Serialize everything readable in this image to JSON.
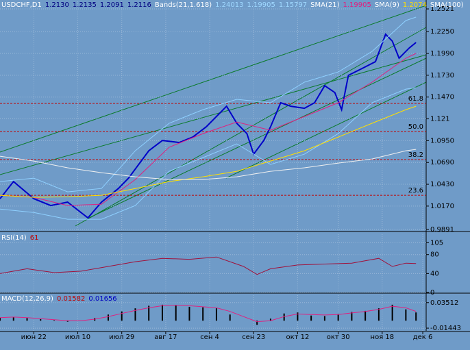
{
  "chart_data": [
    {
      "type": "line",
      "header": [
        {
          "text": "USDCHF,D1",
          "color": "#ffffff"
        },
        {
          "text": "1.2130",
          "color": "#000080"
        },
        {
          "text": "1.2135",
          "color": "#000080"
        },
        {
          "text": "1.2091",
          "color": "#000080"
        },
        {
          "text": "1.2116",
          "color": "#000080"
        },
        {
          "text": "Bands(21,1.618)",
          "color": "#ffffff"
        },
        {
          "text": "1.24013",
          "color": "#9fd8ff"
        },
        {
          "text": "1.19905",
          "color": "#9fd8ff"
        },
        {
          "text": "1.15797",
          "color": "#9fd8ff"
        },
        {
          "text": "SMA(21)",
          "color": "#ffffff"
        },
        {
          "text": "1.19905",
          "color": "#e0207f"
        },
        {
          "text": "SMA(9)",
          "color": "#ffffff"
        },
        {
          "text": "1.2074",
          "color": "#ffe000"
        },
        {
          "text": "SMA(100)",
          "color": "#ffffff"
        }
      ],
      "xlim": [
        0,
        126
      ],
      "xticks": [
        {
          "value": 10,
          "label": "июн 22"
        },
        {
          "value": 23,
          "label": "июл 10"
        },
        {
          "value": 36,
          "label": "июл 29"
        },
        {
          "value": 49,
          "label": "авг 17"
        },
        {
          "value": 62,
          "label": "сен 4"
        },
        {
          "value": 75,
          "label": "сен 23"
        },
        {
          "value": 88,
          "label": "окт 12"
        },
        {
          "value": 100,
          "label": "окт 30"
        },
        {
          "value": 113,
          "label": "ноя 18"
        },
        {
          "value": 125,
          "label": "дек 6"
        }
      ],
      "ylim": [
        0.9875,
        1.2611
      ],
      "yticks": [
        1.2521,
        {
          "value": 1.225,
          "label": "1.2250"
        },
        {
          "value": 1.199,
          "label": "1.1990"
        },
        {
          "value": 1.173,
          "label": "1.1730"
        },
        {
          "value": 1.147,
          "label": "1.1470"
        },
        1.121,
        {
          "value": 1.095,
          "label": "1.0950"
        },
        {
          "value": 1.069,
          "label": "1.0690"
        },
        {
          "value": 1.043,
          "label": "1.0430"
        },
        {
          "value": 1.017,
          "label": "1.0170"
        },
        0.9891
      ],
      "grid": true,
      "levels": [
        {
          "label": "61.8",
          "value": 1.1394
        },
        {
          "label": "50.0",
          "value": 1.1059
        },
        {
          "label": "38.2",
          "value": 1.0724
        },
        {
          "label": "23.6",
          "value": 1.0299
        }
      ],
      "series": [
        {
          "color": "#0000c8",
          "width": 2,
          "x": [
            0,
            4,
            10,
            15,
            20,
            26,
            30,
            35,
            38,
            44,
            48,
            53,
            57,
            61,
            65,
            67,
            70,
            73,
            75,
            78,
            80,
            83,
            86,
            90,
            93,
            96,
            99,
            101,
            103,
            107,
            111,
            114,
            116,
            118,
            121,
            123
          ],
          "values": [
            1.0258,
            1.0462,
            1.0258,
            1.0176,
            1.0217,
            1.0029,
            1.0217,
            1.038,
            1.0503,
            1.083,
            1.0952,
            1.0928,
            1.0993,
            1.1116,
            1.1279,
            1.1361,
            1.1157,
            1.1034,
            1.0789,
            1.0952,
            1.1116,
            1.1402,
            1.1361,
            1.1336,
            1.1402,
            1.1606,
            1.1524,
            1.132,
            1.1729,
            1.181,
            1.1892,
            1.2219,
            1.2137,
            1.1933,
            1.2055,
            1.2121
          ]
        },
        {
          "color": "#8fd0ff",
          "width": 1,
          "x": [
            0,
            10,
            20,
            30,
            40,
            50,
            60,
            70,
            80,
            90,
            100,
            110,
            120,
            123
          ],
          "values": [
            1.0462,
            1.0503,
            1.034,
            1.038,
            1.083,
            1.1157,
            1.132,
            1.1443,
            1.1402,
            1.1647,
            1.1769,
            1.2014,
            1.2382,
            1.2423
          ]
        },
        {
          "color": "#8fd0ff",
          "width": 1,
          "x": [
            0,
            10,
            20,
            30,
            40,
            50,
            60,
            70,
            80,
            90,
            100,
            110,
            120,
            123
          ],
          "values": [
            1.0135,
            1.0094,
            1.0013,
            1.0013,
            1.0176,
            1.0585,
            1.0748,
            1.0912,
            1.0666,
            1.0789,
            1.1034,
            1.1402,
            1.1565,
            1.1581
          ]
        },
        {
          "color": "#e0207f",
          "width": 1,
          "x": [
            0,
            10,
            20,
            30,
            40,
            50,
            60,
            70,
            80,
            90,
            100,
            110,
            120,
            123
          ],
          "values": [
            1.0299,
            1.0274,
            1.0176,
            1.0193,
            1.0487,
            1.0871,
            1.1034,
            1.1173,
            1.1075,
            1.1238,
            1.1402,
            1.1647,
            1.1933,
            1.199
          ]
        },
        {
          "color": "#ffe000",
          "width": 1,
          "x": [
            0,
            10,
            20,
            30,
            40,
            50,
            60,
            70,
            80,
            90,
            100,
            110,
            120,
            123
          ],
          "values": [
            1.0299,
            1.0274,
            1.0282,
            1.0299,
            1.038,
            1.0462,
            1.0519,
            1.0585,
            1.0707,
            1.083,
            1.0993,
            1.1157,
            1.132,
            1.1361
          ]
        },
        {
          "color": "#f0f0f0",
          "width": 1,
          "x": [
            0,
            10,
            20,
            30,
            40,
            50,
            60,
            70,
            80,
            90,
            100,
            110,
            120,
            123
          ],
          "values": [
            1.0764,
            1.0707,
            1.0626,
            1.0568,
            1.0519,
            1.0487,
            1.0487,
            1.0519,
            1.0585,
            1.0626,
            1.0683,
            1.0732,
            1.083,
            1.0846
          ]
        }
      ]
    },
    {
      "type": "line",
      "header": [
        {
          "text": "RSI(14)",
          "color": "#ffffff"
        },
        {
          "text": "61",
          "color": "#c00000"
        }
      ],
      "xlim": [
        0,
        126
      ],
      "ylim": [
        0,
        123
      ],
      "yticks": [
        105,
        80,
        40,
        0
      ],
      "grid": true,
      "series": [
        {
          "color": "#a0103a",
          "width": 1,
          "x": [
            0,
            8,
            16,
            24,
            32,
            40,
            48,
            56,
            64,
            72,
            76,
            80,
            88,
            96,
            104,
            112,
            116,
            120,
            123
          ],
          "values": [
            40,
            50,
            42,
            45,
            55,
            65,
            72,
            70,
            75,
            55,
            38,
            50,
            58,
            60,
            62,
            72,
            55,
            62,
            61
          ]
        }
      ]
    },
    {
      "type": "bar",
      "header": [
        {
          "text": "MACD(12,26,9)",
          "color": "#ffffff"
        },
        {
          "text": "0.01582",
          "color": "#c00000"
        },
        {
          "text": "0.01656",
          "color": "#0000c0"
        }
      ],
      "xlim": [
        0,
        126
      ],
      "ylim": [
        -0.01965,
        0.04946
      ],
      "yticks": [
        0.03512,
        -0.01443
      ],
      "grid": true,
      "series": [
        {
          "style": "bar",
          "color": "#000000",
          "x": [
            0,
            4,
            8,
            12,
            16,
            20,
            24,
            28,
            32,
            36,
            40,
            44,
            48,
            52,
            56,
            60,
            64,
            68,
            72,
            76,
            80,
            84,
            88,
            92,
            96,
            100,
            104,
            108,
            112,
            116,
            120,
            123
          ],
          "values": [
            0.006,
            0.007,
            0.005,
            0.003,
            0.001,
            -0.002,
            0,
            0.005,
            0.012,
            0.018,
            0.024,
            0.029,
            0.031,
            0.03,
            0.027,
            0.026,
            0.024,
            0.012,
            0,
            -0.008,
            0.004,
            0.014,
            0.016,
            0.01,
            0.009,
            0.013,
            0.017,
            0.019,
            0.024,
            0.031,
            0.022,
            0.016
          ]
        },
        {
          "style": "line",
          "color": "#e0207f",
          "x": [
            0,
            4,
            8,
            12,
            16,
            20,
            24,
            28,
            32,
            36,
            40,
            44,
            48,
            52,
            56,
            60,
            64,
            68,
            72,
            76,
            80,
            84,
            88,
            92,
            96,
            100,
            104,
            108,
            112,
            116,
            120,
            123
          ],
          "values": [
            0.006,
            0.007,
            0.006,
            0.004,
            0.002,
            0,
            0,
            0.003,
            0.008,
            0.014,
            0.02,
            0.025,
            0.029,
            0.03,
            0.029,
            0.027,
            0.025,
            0.018,
            0.008,
            -0.002,
            0,
            0.008,
            0.013,
            0.012,
            0.011,
            0.012,
            0.015,
            0.018,
            0.022,
            0.028,
            0.025,
            0.018
          ]
        }
      ]
    }
  ]
}
